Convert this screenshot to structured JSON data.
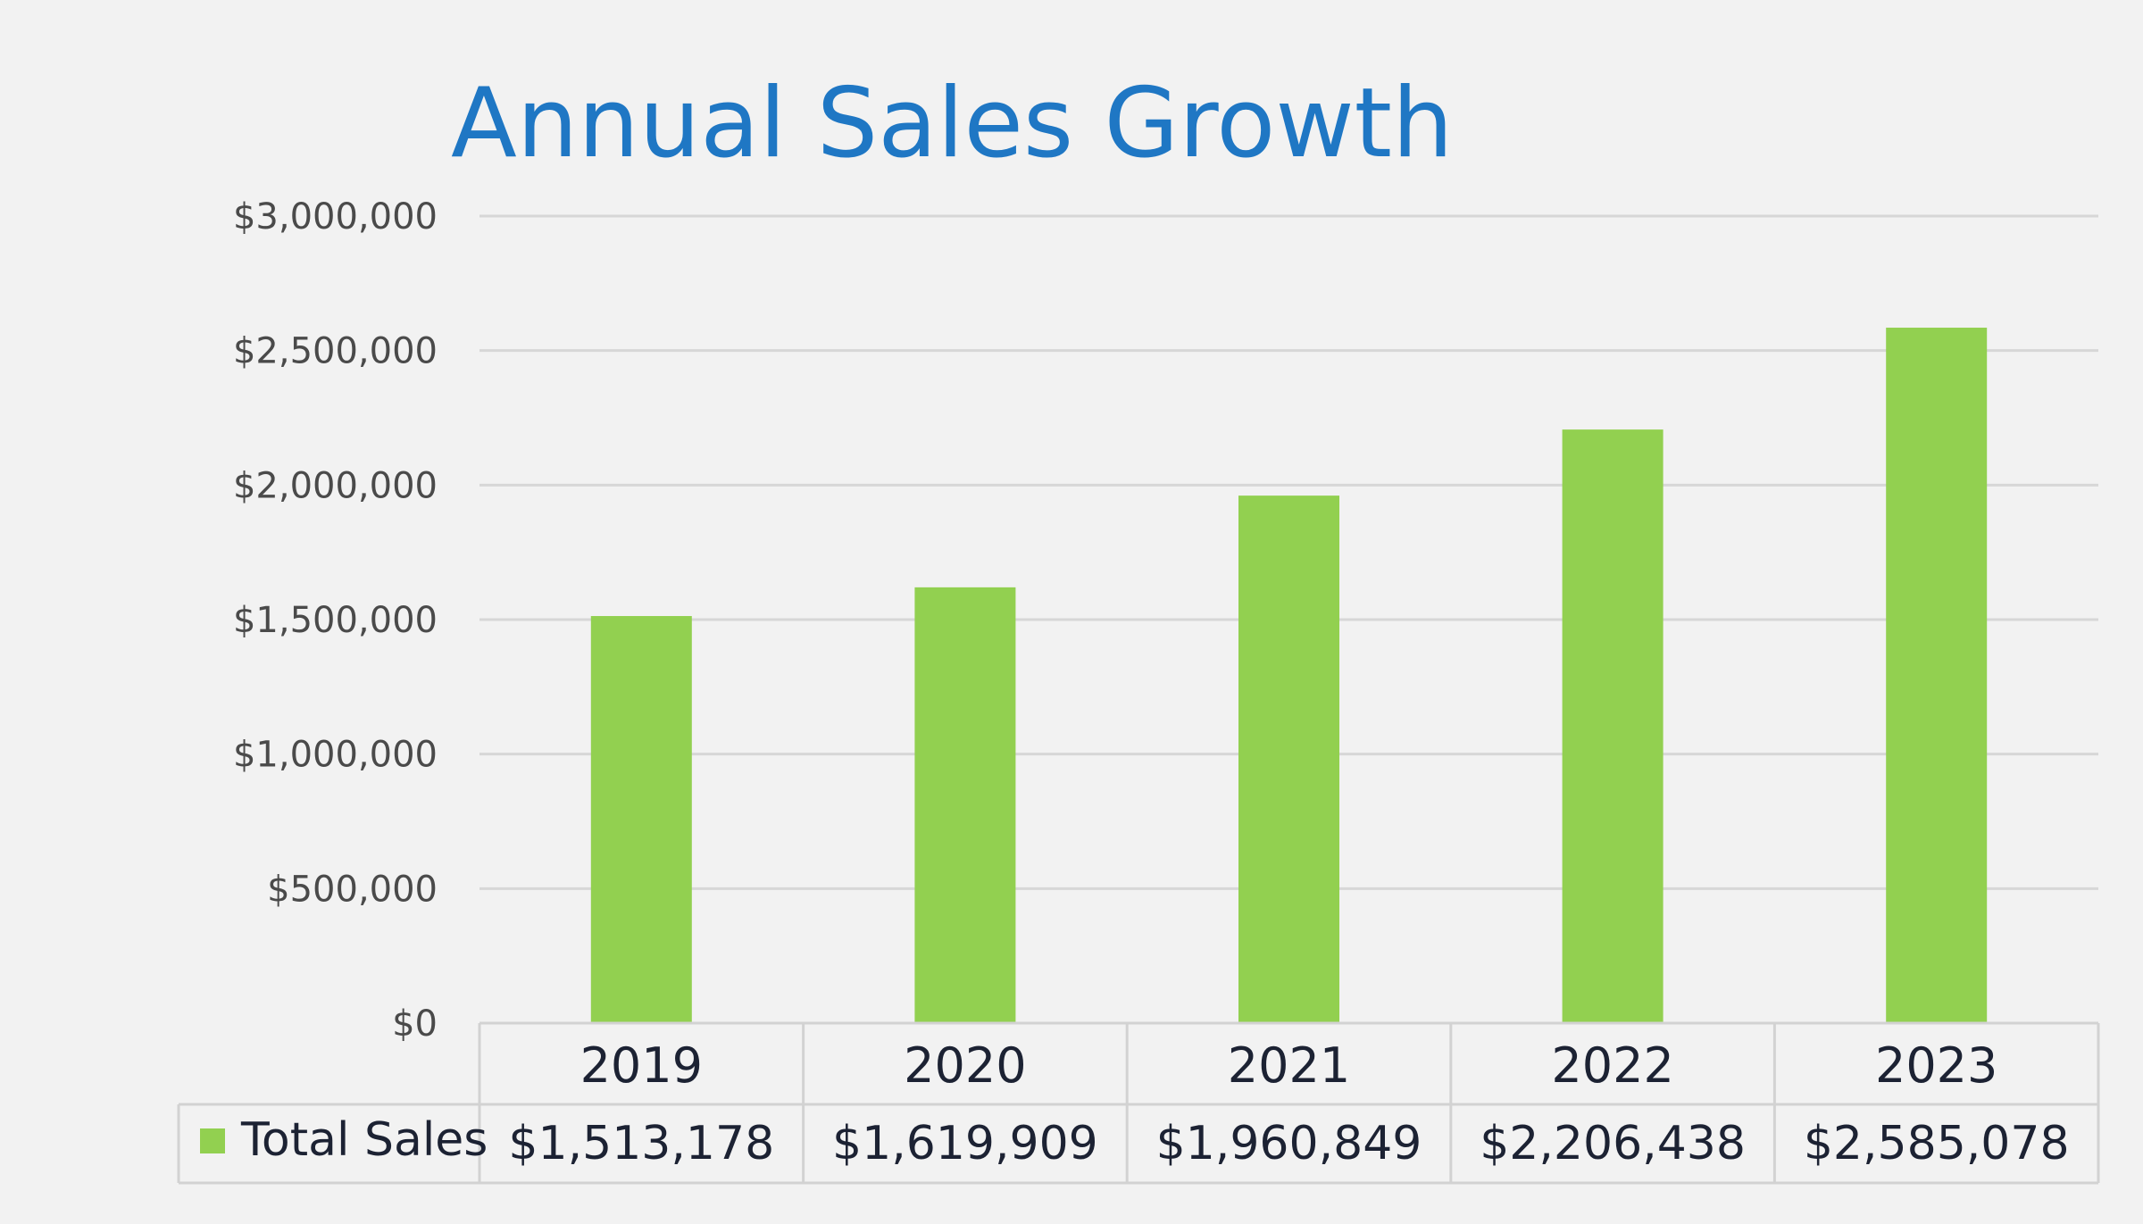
{
  "chart_data": {
    "type": "bar",
    "title": "Annual Sales Growth",
    "xlabel": "",
    "ylabel": "",
    "categories": [
      "2019",
      "2020",
      "2021",
      "2022",
      "2023"
    ],
    "series": [
      {
        "name": "Total Sales",
        "values": [
          1513178,
          1619909,
          1960849,
          2206438,
          2585078
        ],
        "labels": [
          "$1,513,178",
          "$1,619,909",
          "$1,960,849",
          "$2,206,438",
          "$2,585,078"
        ],
        "color": "#92d050"
      }
    ],
    "ylim": [
      0,
      3000000
    ],
    "y_ticks": [
      0,
      500000,
      1000000,
      1500000,
      2000000,
      2500000,
      3000000
    ],
    "y_tick_labels": [
      "$0",
      "$500,000",
      "$1,000,000",
      "$1,500,000",
      "$2,000,000",
      "$2,500,000",
      "$3,000,000"
    ],
    "grid": true,
    "legend": "data-table",
    "data_table": true
  },
  "colors": {
    "background": "#f2f2f2",
    "title": "#1f77c4",
    "bar": "#92d050",
    "gridline": "#d7d7d7"
  }
}
